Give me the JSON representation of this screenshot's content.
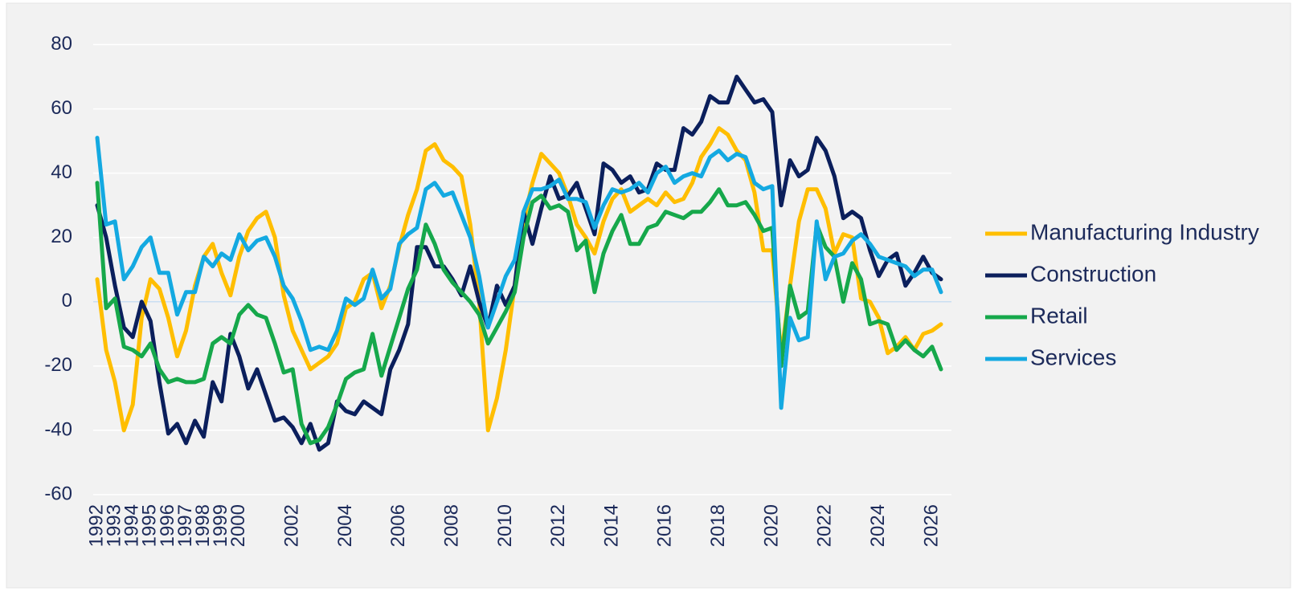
{
  "chart_data": {
    "type": "line",
    "categories": [
      "1992",
      null,
      "1993",
      null,
      "1994",
      null,
      "1995",
      null,
      "1996",
      null,
      "1997",
      null,
      "1998",
      null,
      "1999",
      null,
      "2000",
      null,
      null,
      null,
      null,
      null,
      "2002",
      null,
      null,
      null,
      null,
      null,
      "2004",
      null,
      null,
      null,
      null,
      null,
      "2006",
      null,
      null,
      null,
      null,
      null,
      "2008",
      null,
      null,
      null,
      null,
      null,
      "2010",
      null,
      null,
      null,
      null,
      null,
      "2012",
      null,
      null,
      null,
      null,
      null,
      "2014",
      null,
      null,
      null,
      null,
      null,
      "2016",
      null,
      null,
      null,
      null,
      null,
      "2018",
      null,
      null,
      null,
      null,
      null,
      "2020",
      null,
      null,
      null,
      null,
      null,
      "2022",
      null,
      null,
      null,
      null,
      null,
      "2024",
      null,
      null,
      null,
      null,
      null,
      "2026",
      null
    ],
    "series": [
      {
        "name": "Manufacturing Industry",
        "color": "#ffbe00",
        "values": [
          7,
          -15,
          -25,
          -40,
          -32,
          -5,
          7,
          4,
          -5,
          -17,
          -9,
          5,
          14,
          18,
          9,
          2,
          14,
          22,
          26,
          28,
          20,
          2,
          -9,
          -15,
          -21,
          -19,
          -17,
          -13,
          -2,
          0,
          7,
          9,
          -2,
          5,
          17,
          27,
          35,
          47,
          49,
          44,
          42,
          39,
          24,
          0,
          -40,
          -30,
          -15,
          5,
          25,
          37,
          46,
          43,
          40,
          33,
          24,
          20,
          15,
          25,
          32,
          35,
          28,
          30,
          32,
          30,
          34,
          31,
          32,
          37,
          45,
          49,
          54,
          52,
          47,
          44,
          34,
          16,
          16,
          -17,
          5,
          25,
          35,
          35,
          29,
          15,
          21,
          20,
          1,
          0,
          -5,
          -16,
          -14,
          -11,
          -15,
          -10,
          -9,
          -7
        ]
      },
      {
        "name": "Construction",
        "color": "#0b1f5c",
        "values": [
          30,
          20,
          5,
          -8,
          -11,
          0,
          -6,
          -25,
          -41,
          -38,
          -44,
          -37,
          -42,
          -25,
          -31,
          -10,
          -17,
          -27,
          -21,
          -29,
          -37,
          -36,
          -39,
          -44,
          -38,
          -46,
          -44,
          -31,
          -34,
          -35,
          -31,
          -33,
          -35,
          -21,
          -15,
          -7,
          17,
          17,
          11,
          11,
          7,
          2,
          11,
          0,
          -8,
          5,
          -1,
          5,
          28,
          18,
          29,
          39,
          32,
          33,
          37,
          29,
          21,
          43,
          41,
          37,
          39,
          34,
          35,
          43,
          41,
          41,
          54,
          52,
          56,
          64,
          62,
          62,
          70,
          66,
          62,
          63,
          59,
          30,
          44,
          39,
          41,
          51,
          47,
          39,
          26,
          28,
          26,
          16,
          8,
          13,
          15,
          5,
          9,
          14,
          9,
          7
        ]
      },
      {
        "name": "Retail",
        "color": "#16a84b",
        "values": [
          37,
          -2,
          1,
          -14,
          -15,
          -17,
          -13,
          -21,
          -25,
          -24,
          -25,
          -25,
          -24,
          -13,
          -11,
          -13,
          -4,
          -1,
          -4,
          -5,
          -13,
          -22,
          -21,
          -38,
          -44,
          -43,
          -39,
          -32,
          -24,
          -22,
          -21,
          -10,
          -23,
          -14,
          -5,
          4,
          10,
          24,
          18,
          10,
          6,
          3,
          0,
          -4,
          -13,
          -8,
          -3,
          3,
          20,
          31,
          33,
          29,
          30,
          28,
          16,
          19,
          3,
          15,
          22,
          27,
          18,
          18,
          23,
          24,
          28,
          27,
          26,
          28,
          28,
          31,
          35,
          30,
          30,
          31,
          27,
          22,
          23,
          -20,
          5,
          -5,
          -3,
          24,
          17,
          14,
          0,
          12,
          7,
          -7,
          -6,
          -7,
          -15,
          -12,
          -15,
          -17,
          -14,
          -21
        ]
      },
      {
        "name": "Services",
        "color": "#14a9e1",
        "values": [
          51,
          24,
          25,
          7,
          11,
          17,
          20,
          9,
          9,
          -4,
          3,
          3,
          14,
          11,
          15,
          13,
          21,
          16,
          19,
          20,
          14,
          5,
          1,
          -6,
          -15,
          -14,
          -15,
          -9,
          1,
          -1,
          1,
          10,
          1,
          4,
          18,
          21,
          23,
          35,
          37,
          33,
          34,
          27,
          20,
          8,
          -8,
          0,
          8,
          13,
          28,
          35,
          35,
          36,
          38,
          32,
          32,
          31,
          23,
          30,
          35,
          34,
          35,
          37,
          34,
          40,
          42,
          37,
          39,
          40,
          39,
          45,
          47,
          44,
          46,
          45,
          37,
          35,
          36,
          -33,
          -5,
          -12,
          -11,
          25,
          7,
          14,
          15,
          19,
          21,
          18,
          14,
          13,
          12,
          11,
          8,
          10,
          10,
          3
        ]
      }
    ],
    "ylim": [
      -60,
      80
    ],
    "yticks": [
      -60,
      -40,
      -20,
      0,
      20,
      40,
      60,
      80
    ],
    "grid": true,
    "legend": "right"
  }
}
